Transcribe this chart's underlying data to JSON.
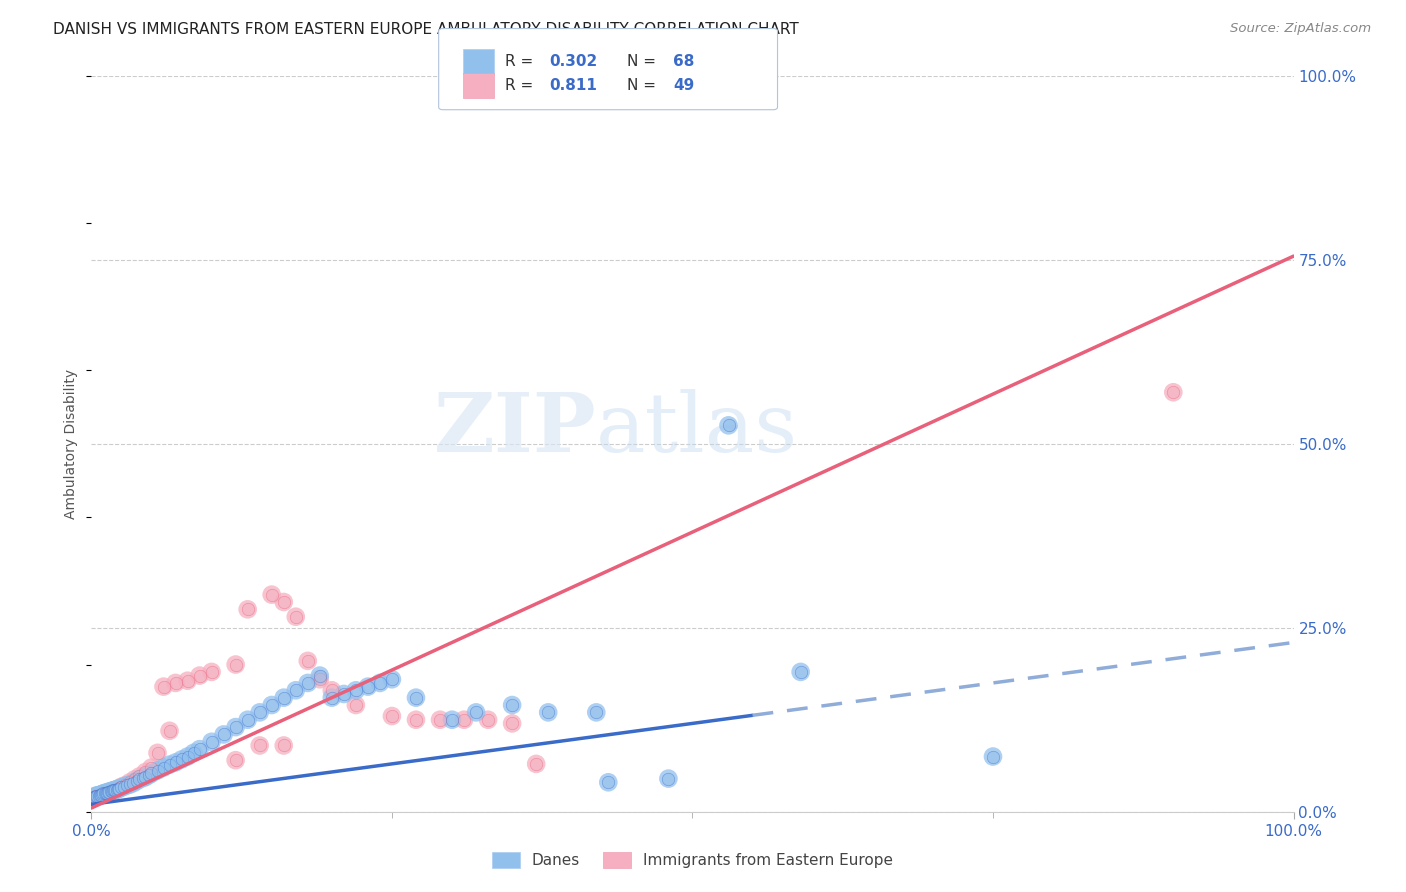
{
  "title": "DANISH VS IMMIGRANTS FROM EASTERN EUROPE AMBULATORY DISABILITY CORRELATION CHART",
  "source": "Source: ZipAtlas.com",
  "ylabel": "Ambulatory Disability",
  "xlim": [
    0,
    1
  ],
  "ylim": [
    0,
    1
  ],
  "ytick_positions_right": [
    0.0,
    0.25,
    0.5,
    0.75,
    1.0
  ],
  "ytick_labels_right": [
    "0.0%",
    "25.0%",
    "50.0%",
    "75.0%",
    "100.0%"
  ],
  "danes_color": "#92c0ed",
  "immigrants_color": "#f5afc0",
  "danes_line_color": "#3a6bc9",
  "immigrants_line_color": "#e8607a",
  "danes_line_solid_end": 0.55,
  "danes_R": 0.302,
  "danes_N": 68,
  "immigrants_R": 0.811,
  "immigrants_N": 49,
  "watermark_zip": "ZIP",
  "watermark_atlas": "atlas",
  "background_color": "#ffffff",
  "grid_color": "#cccccc",
  "danes_line_m": 0.22,
  "danes_line_b": 0.01,
  "immigrants_line_m": 0.75,
  "immigrants_line_b": 0.005,
  "danes_scatter_x": [
    0.002,
    0.003,
    0.004,
    0.005,
    0.006,
    0.007,
    0.008,
    0.009,
    0.01,
    0.011,
    0.012,
    0.013,
    0.014,
    0.015,
    0.016,
    0.017,
    0.018,
    0.019,
    0.02,
    0.021,
    0.022,
    0.023,
    0.025,
    0.027,
    0.03,
    0.032,
    0.035,
    0.038,
    0.04,
    0.043,
    0.045,
    0.048,
    0.05,
    0.055,
    0.06,
    0.065,
    0.07,
    0.075,
    0.08,
    0.085,
    0.09,
    0.1,
    0.11,
    0.12,
    0.13,
    0.14,
    0.15,
    0.16,
    0.17,
    0.18,
    0.19,
    0.2,
    0.21,
    0.22,
    0.23,
    0.24,
    0.25,
    0.27,
    0.3,
    0.32,
    0.35,
    0.38,
    0.42,
    0.48,
    0.53,
    0.59,
    0.75,
    0.43
  ],
  "danes_scatter_y": [
    0.02,
    0.02,
    0.022,
    0.022,
    0.022,
    0.023,
    0.023,
    0.024,
    0.025,
    0.025,
    0.026,
    0.026,
    0.027,
    0.027,
    0.028,
    0.028,
    0.029,
    0.029,
    0.03,
    0.03,
    0.031,
    0.031,
    0.033,
    0.034,
    0.036,
    0.037,
    0.039,
    0.042,
    0.044,
    0.046,
    0.047,
    0.05,
    0.052,
    0.056,
    0.06,
    0.064,
    0.067,
    0.071,
    0.075,
    0.08,
    0.085,
    0.095,
    0.105,
    0.115,
    0.125,
    0.135,
    0.145,
    0.155,
    0.165,
    0.175,
    0.185,
    0.155,
    0.16,
    0.165,
    0.17,
    0.175,
    0.18,
    0.155,
    0.125,
    0.135,
    0.145,
    0.135,
    0.135,
    0.045,
    0.525,
    0.19,
    0.075,
    0.04
  ],
  "immigrants_scatter_x": [
    0.002,
    0.003,
    0.004,
    0.005,
    0.006,
    0.007,
    0.008,
    0.009,
    0.01,
    0.011,
    0.013,
    0.015,
    0.017,
    0.02,
    0.023,
    0.025,
    0.028,
    0.032,
    0.036,
    0.04,
    0.045,
    0.05,
    0.06,
    0.07,
    0.08,
    0.09,
    0.1,
    0.12,
    0.13,
    0.15,
    0.16,
    0.17,
    0.18,
    0.19,
    0.2,
    0.22,
    0.25,
    0.27,
    0.29,
    0.31,
    0.33,
    0.35,
    0.37,
    0.12,
    0.14,
    0.16,
    0.055,
    0.065,
    0.9
  ],
  "immigrants_scatter_y": [
    0.02,
    0.02,
    0.021,
    0.021,
    0.022,
    0.022,
    0.023,
    0.023,
    0.024,
    0.024,
    0.025,
    0.026,
    0.028,
    0.03,
    0.032,
    0.034,
    0.036,
    0.04,
    0.044,
    0.048,
    0.054,
    0.06,
    0.17,
    0.175,
    0.178,
    0.185,
    0.19,
    0.2,
    0.275,
    0.295,
    0.285,
    0.265,
    0.205,
    0.18,
    0.165,
    0.145,
    0.13,
    0.125,
    0.125,
    0.125,
    0.125,
    0.12,
    0.065,
    0.07,
    0.09,
    0.09,
    0.08,
    0.11,
    0.57
  ]
}
